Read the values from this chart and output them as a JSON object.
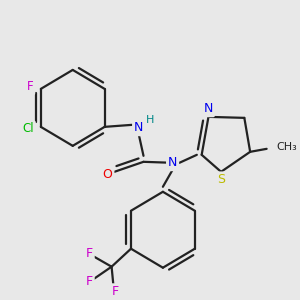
{
  "bg_color": "#e8e8e8",
  "bond_color": "#222222",
  "bond_width": 1.6,
  "dbo": 0.016,
  "colors": {
    "N": "#0000ee",
    "O": "#ee0000",
    "S": "#bbbb00",
    "Cl": "#00bb00",
    "F": "#cc00cc",
    "H": "#008888",
    "C": "#222222"
  },
  "font_size": 9,
  "bg": "#e8e8e8"
}
